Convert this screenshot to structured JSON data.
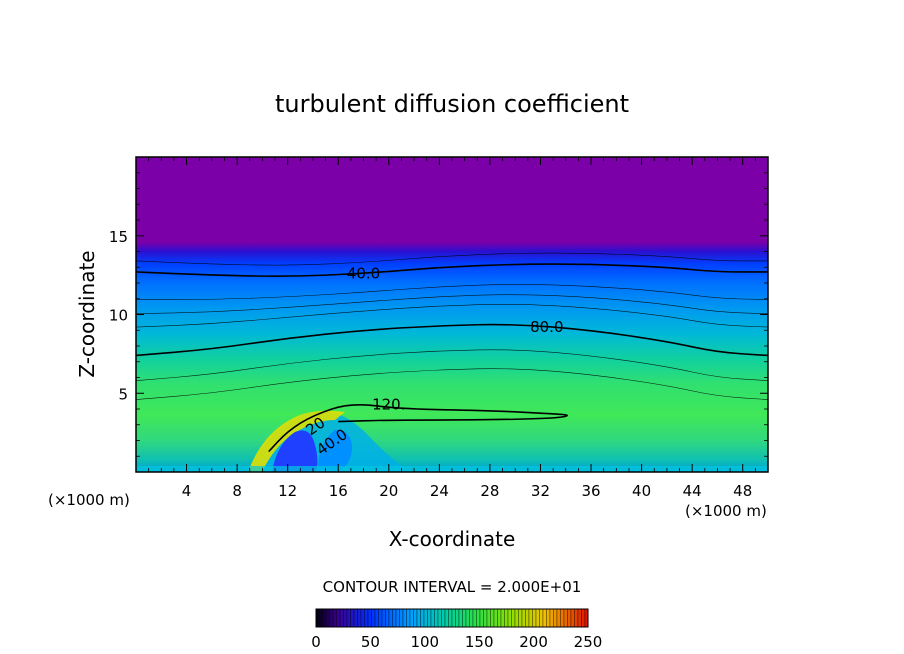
{
  "chart_data": {
    "type": "heatmap",
    "title": "turbulent diffusion coefficient",
    "xlabel": "X-coordinate",
    "ylabel": "Z-coordinate",
    "x_unit": "(×1000 m)",
    "x_unit_right": "(×1000 m)",
    "xlim": [
      0,
      50
    ],
    "ylim": [
      0,
      20
    ],
    "x_ticks": [
      4,
      8,
      12,
      16,
      20,
      24,
      28,
      32,
      36,
      40,
      44,
      48
    ],
    "y_ticks": [
      5,
      10,
      15
    ],
    "x_tick_labels": [
      "4",
      "8",
      "12",
      "16",
      "20",
      "24",
      "28",
      "32",
      "36",
      "40",
      "44",
      "48"
    ],
    "y_tick_labels": [
      "5",
      "10",
      "15"
    ],
    "contour_interval_text": "CONTOUR INTERVAL = 2.000E+01",
    "contour_labels": [
      {
        "text": "40.0",
        "x": 18.0,
        "z": 12.6
      },
      {
        "text": "80.0",
        "x": 32.5,
        "z": 9.2
      },
      {
        "text": "120.",
        "x": 20.0,
        "z": 4.3
      },
      {
        "text": "40.0",
        "x": 15.5,
        "z": 1.9
      },
      {
        "text": "20",
        "x": 14.2,
        "z": 2.9
      }
    ],
    "key_contours": [
      {
        "level": 40,
        "points": [
          [
            0,
            12.7
          ],
          [
            6,
            12.5
          ],
          [
            12,
            12.4
          ],
          [
            18,
            12.6
          ],
          [
            24,
            13.0
          ],
          [
            30,
            13.2
          ],
          [
            36,
            13.2
          ],
          [
            42,
            13.0
          ],
          [
            46,
            12.7
          ],
          [
            50,
            12.7
          ]
        ]
      },
      {
        "level": 80,
        "points": [
          [
            0,
            7.4
          ],
          [
            6,
            7.8
          ],
          [
            12,
            8.5
          ],
          [
            18,
            9.0
          ],
          [
            24,
            9.3
          ],
          [
            30,
            9.4
          ],
          [
            36,
            9.0
          ],
          [
            42,
            8.3
          ],
          [
            46,
            7.6
          ],
          [
            50,
            7.4
          ]
        ]
      },
      {
        "level": 120,
        "points": [
          [
            10.5,
            1.3
          ],
          [
            12,
            2.6
          ],
          [
            14,
            3.6
          ],
          [
            17,
            4.4
          ],
          [
            21,
            4.0
          ],
          [
            28,
            3.9
          ],
          [
            33,
            3.7
          ],
          [
            34.5,
            3.6
          ],
          [
            33,
            3.4
          ],
          [
            27,
            3.3
          ],
          [
            20,
            3.3
          ],
          [
            16,
            3.2
          ]
        ]
      }
    ],
    "colorbar": {
      "min": 0,
      "max": 250,
      "ticks": [
        0,
        50,
        100,
        150,
        200,
        250
      ],
      "tick_labels": [
        "0",
        "50",
        "100",
        "150",
        "200",
        "250"
      ]
    },
    "fields_note_colors": {
      "top_band": "#7b00a8",
      "mid": "#00a0e0",
      "high": "#40e060"
    }
  }
}
